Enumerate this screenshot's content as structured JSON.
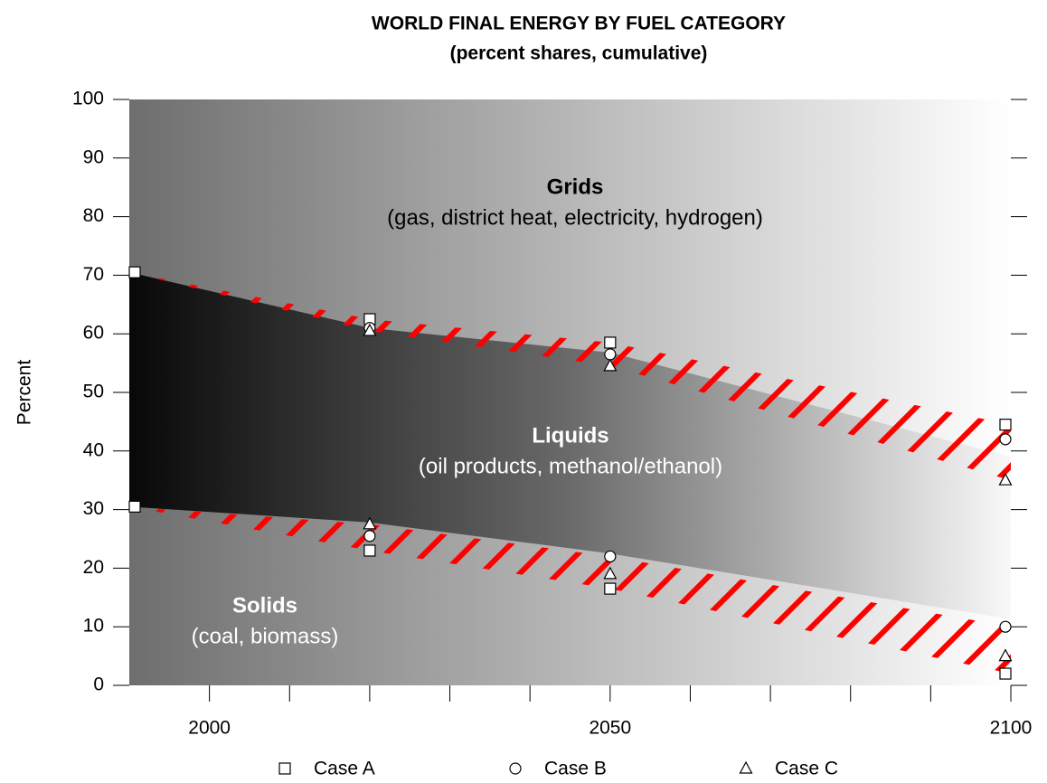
{
  "chart_data": {
    "type": "band-range",
    "title": "WORLD FINAL ENERGY BY FUEL CATEGORY",
    "subtitle": "(percent shares, cumulative)",
    "y_label": "Percent",
    "x": [
      1990,
      2020,
      2050,
      2100
    ],
    "band_upper": [
      70.5,
      61,
      56.8,
      39
    ],
    "band_lower": [
      30.5,
      27.8,
      22.5,
      11.3
    ],
    "series": [
      {
        "name": "Case A",
        "marker": "square",
        "upper": [
          70.5,
          62.5,
          58.5,
          44.5
        ],
        "lower": [
          30.5,
          23,
          16.5,
          2
        ]
      },
      {
        "name": "Case B",
        "marker": "circle",
        "upper": [
          null,
          61,
          56.5,
          42
        ],
        "lower": [
          null,
          25.5,
          22,
          10
        ]
      },
      {
        "name": "Case C",
        "marker": "triangle",
        "upper": [
          null,
          60.5,
          54.5,
          35
        ],
        "lower": [
          null,
          27.5,
          19,
          5
        ]
      }
    ],
    "hatch_color": "#ff0000",
    "annotations": [
      {
        "title": "Grids",
        "text": "(gas, district heat, electricity, hydrogen)"
      },
      {
        "title": "Liquids",
        "text": "(oil products, methanol/ethanol)"
      },
      {
        "title": "Solids",
        "text": "(coal, biomass)"
      }
    ],
    "xlim": [
      1990,
      2100
    ],
    "xticks": [
      2000,
      2050,
      2100
    ],
    "xminor_ticks": [
      2010,
      2020,
      2030,
      2040,
      2060,
      2070,
      2080,
      2090
    ],
    "ylim": [
      0,
      100
    ],
    "yticks": [
      0,
      10,
      20,
      30,
      40,
      50,
      60,
      70,
      80,
      90,
      100
    ]
  }
}
